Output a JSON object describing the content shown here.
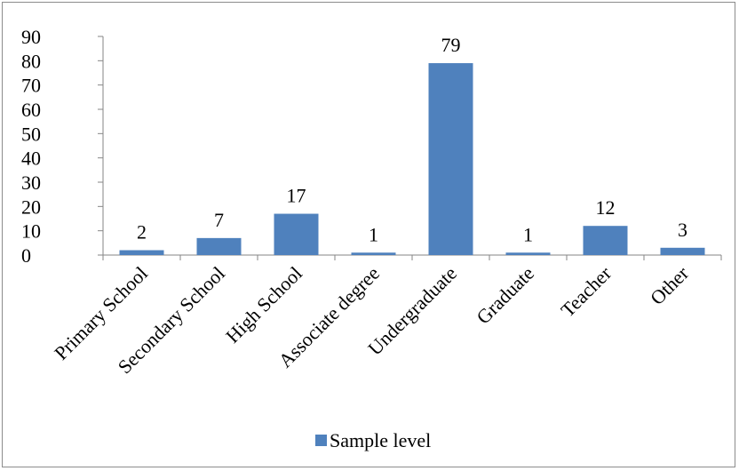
{
  "chart_data": {
    "type": "bar",
    "categories": [
      "Primary School",
      "Secondary School",
      "High School",
      "Associate degree",
      "Undergraduate",
      "Graduate",
      "Teacher",
      "Other"
    ],
    "series": [
      {
        "name": "Sample level",
        "values": [
          2,
          7,
          17,
          1,
          79,
          1,
          12,
          3
        ]
      }
    ],
    "ylim": [
      0,
      90
    ],
    "yticks": [
      0,
      10,
      20,
      30,
      40,
      50,
      60,
      70,
      80,
      90
    ],
    "data_labels": [
      "2",
      "7",
      "17",
      "1",
      "79",
      "1",
      "12",
      "3"
    ],
    "grid": false,
    "legend_position": "bottom",
    "bar_color": "#4f81bd"
  }
}
